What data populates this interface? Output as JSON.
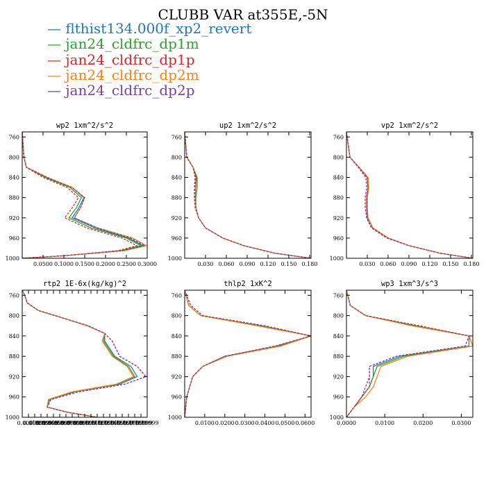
{
  "title": "CLUBB VAR at355E,-5N",
  "series": [
    {
      "name": "flthist134.000f_xp2_revert",
      "color": "#1f77b4",
      "dash": "solid"
    },
    {
      "name": "jan24_cldfrc_dp1m",
      "color": "#2ca02c",
      "dash": "solid"
    },
    {
      "name": "jan24_cldfrc_dp1p",
      "color": "#d62728",
      "dash": "dashed"
    },
    {
      "name": "jan24_cldfrc_dp2m",
      "color": "#ff7f0e",
      "dash": "solid"
    },
    {
      "name": "jan24_cldfrc_dp2p",
      "color": "#7b3f9e",
      "dash": "dashed"
    }
  ],
  "chart_data": [
    {
      "type": "line",
      "title": "wp2 1xm^2/s^2",
      "xlim": [
        0.0,
        0.3
      ],
      "xticks": [
        0.05,
        0.1,
        0.15,
        0.2,
        0.25,
        0.3
      ],
      "xticklabels": [
        "0.0500",
        "0.1000",
        "0.1500",
        "0.2000",
        "0.2500",
        "0.3000"
      ],
      "ylim": [
        750,
        1000
      ],
      "yticks": [
        760,
        800,
        840,
        880,
        920,
        960,
        1000
      ],
      "yticklabels": [
        "760",
        "800",
        "840",
        "880",
        "920",
        "960",
        "1000"
      ],
      "y": [
        750,
        800,
        820,
        840,
        860,
        880,
        900,
        920,
        940,
        960,
        975,
        985,
        995,
        1000
      ],
      "series": [
        {
          "x": [
            0.0,
            0.004,
            0.01,
            0.06,
            0.12,
            0.148,
            0.136,
            0.12,
            0.175,
            0.255,
            0.29,
            0.24,
            0.1,
            0.0
          ]
        },
        {
          "x": [
            0.0,
            0.004,
            0.01,
            0.055,
            0.115,
            0.142,
            0.13,
            0.112,
            0.165,
            0.25,
            0.285,
            0.235,
            0.1,
            0.0
          ]
        },
        {
          "x": [
            0.0,
            0.004,
            0.01,
            0.05,
            0.108,
            0.135,
            0.12,
            0.102,
            0.155,
            0.24,
            0.275,
            0.23,
            0.1,
            0.0
          ]
        },
        {
          "x": [
            0.0,
            0.004,
            0.01,
            0.06,
            0.12,
            0.15,
            0.14,
            0.125,
            0.182,
            0.265,
            0.298,
            0.245,
            0.1,
            0.0
          ]
        },
        {
          "x": [
            0.0,
            0.004,
            0.01,
            0.06,
            0.12,
            0.15,
            0.14,
            0.125,
            0.18,
            0.26,
            0.295,
            0.24,
            0.1,
            0.0
          ]
        }
      ]
    },
    {
      "type": "line",
      "title": "up2 1xm^2/s^2",
      "xlim": [
        0.0,
        0.182
      ],
      "xticks": [
        0.03,
        0.06,
        0.09,
        0.12,
        0.15,
        0.18
      ],
      "xticklabels": [
        "0.030",
        "0.060",
        "0.090",
        "0.120",
        "0.150",
        "0.180"
      ],
      "ylim": [
        750,
        1000
      ],
      "yticks": [
        760,
        800,
        840,
        880,
        920,
        960,
        1000
      ],
      "yticklabels": [
        "760",
        "800",
        "840",
        "880",
        "920",
        "960",
        "1000"
      ],
      "y": [
        750,
        800,
        820,
        840,
        860,
        880,
        900,
        920,
        940,
        960,
        975,
        990,
        1000
      ],
      "series": [
        {
          "x": [
            0.0,
            0.003,
            0.012,
            0.017,
            0.016,
            0.015,
            0.016,
            0.02,
            0.03,
            0.055,
            0.085,
            0.13,
            0.182
          ]
        },
        {
          "x": [
            0.0,
            0.003,
            0.012,
            0.018,
            0.018,
            0.016,
            0.016,
            0.02,
            0.03,
            0.055,
            0.085,
            0.13,
            0.182
          ]
        },
        {
          "x": [
            0.0,
            0.003,
            0.012,
            0.015,
            0.014,
            0.014,
            0.015,
            0.02,
            0.03,
            0.055,
            0.085,
            0.13,
            0.182
          ]
        },
        {
          "x": [
            0.0,
            0.003,
            0.012,
            0.016,
            0.016,
            0.015,
            0.016,
            0.02,
            0.03,
            0.055,
            0.085,
            0.13,
            0.182
          ]
        },
        {
          "x": [
            0.0,
            0.003,
            0.012,
            0.016,
            0.015,
            0.015,
            0.016,
            0.02,
            0.03,
            0.055,
            0.085,
            0.13,
            0.182
          ]
        }
      ]
    },
    {
      "type": "line",
      "title": "vp2 1xm^2/s^2",
      "xlim": [
        0.0,
        0.182
      ],
      "xticks": [
        0.03,
        0.06,
        0.09,
        0.12,
        0.15,
        0.18
      ],
      "xticklabels": [
        "0.030",
        "0.060",
        "0.090",
        "0.120",
        "0.150",
        "0.180"
      ],
      "ylim": [
        750,
        1000
      ],
      "yticks": [
        760,
        800,
        840,
        880,
        920,
        960,
        1000
      ],
      "yticklabels": [
        "760",
        "800",
        "840",
        "880",
        "920",
        "960",
        "1000"
      ],
      "y": [
        750,
        800,
        820,
        840,
        860,
        880,
        900,
        920,
        940,
        960,
        975,
        990,
        1000
      ],
      "series": [
        {
          "x": [
            0.0,
            0.005,
            0.018,
            0.03,
            0.031,
            0.029,
            0.029,
            0.03,
            0.038,
            0.06,
            0.09,
            0.135,
            0.182
          ]
        },
        {
          "x": [
            0.0,
            0.005,
            0.018,
            0.031,
            0.032,
            0.03,
            0.03,
            0.031,
            0.038,
            0.06,
            0.09,
            0.135,
            0.182
          ]
        },
        {
          "x": [
            0.0,
            0.005,
            0.017,
            0.028,
            0.029,
            0.027,
            0.027,
            0.029,
            0.036,
            0.058,
            0.09,
            0.135,
            0.182
          ]
        },
        {
          "x": [
            0.0,
            0.005,
            0.018,
            0.031,
            0.032,
            0.03,
            0.03,
            0.031,
            0.038,
            0.06,
            0.09,
            0.135,
            0.182
          ]
        },
        {
          "x": [
            0.0,
            0.005,
            0.018,
            0.03,
            0.031,
            0.029,
            0.029,
            0.03,
            0.037,
            0.06,
            0.09,
            0.135,
            0.182
          ]
        }
      ]
    },
    {
      "type": "line",
      "title": "rtp2 1E-6x(kg/kg)^2",
      "xlim": [
        0.0,
        1.0
      ],
      "xticks": [
        0.05,
        0.1,
        0.15,
        0.2,
        0.25,
        0.3,
        0.35,
        0.4,
        0.45,
        0.5,
        0.55,
        0.6,
        0.65,
        0.7,
        0.75,
        0.8,
        0.85,
        0.9,
        0.95,
        1.0
      ],
      "xticklabels": [
        "0.00999",
        "0.01999",
        "0.02999",
        "0.03999",
        "0.04999",
        "0.05999",
        "0.06999",
        "0.07999",
        "0.08999",
        "0.09999",
        "0.10999",
        "0.11999",
        "0.12999",
        "0.13999",
        "0.14999",
        "0.15999",
        "0.16999",
        "0.17999",
        "0.18999",
        "0.19999"
      ],
      "ylim": [
        750,
        1000
      ],
      "yticks": [
        760,
        800,
        840,
        880,
        920,
        960,
        1000
      ],
      "yticklabels": [
        "760",
        "800",
        "840",
        "880",
        "920",
        "960",
        "1000"
      ],
      "y": [
        750,
        760,
        775,
        790,
        805,
        820,
        835,
        850,
        865,
        880,
        900,
        920,
        935,
        950,
        965,
        980,
        990,
        1000
      ],
      "series": [
        {
          "x": [
            0.0,
            0.02,
            0.04,
            0.13,
            0.33,
            0.52,
            0.66,
            0.66,
            0.7,
            0.74,
            0.87,
            0.92,
            0.78,
            0.42,
            0.22,
            0.2,
            0.36,
            0.6
          ]
        },
        {
          "x": [
            0.0,
            0.02,
            0.04,
            0.13,
            0.33,
            0.52,
            0.66,
            0.65,
            0.69,
            0.73,
            0.85,
            0.9,
            0.76,
            0.4,
            0.21,
            0.2,
            0.36,
            0.6
          ]
        },
        {
          "x": [
            0.0,
            0.02,
            0.04,
            0.13,
            0.33,
            0.53,
            0.66,
            0.72,
            0.75,
            0.78,
            0.92,
            0.99,
            0.82,
            0.45,
            0.23,
            0.2,
            0.36,
            0.6
          ]
        },
        {
          "x": [
            0.0,
            0.02,
            0.04,
            0.13,
            0.33,
            0.52,
            0.66,
            0.64,
            0.68,
            0.72,
            0.84,
            0.89,
            0.75,
            0.4,
            0.21,
            0.2,
            0.36,
            0.6
          ]
        },
        {
          "x": [
            0.0,
            0.02,
            0.04,
            0.13,
            0.33,
            0.53,
            0.66,
            0.72,
            0.75,
            0.78,
            0.92,
            0.99,
            0.82,
            0.45,
            0.23,
            0.2,
            0.36,
            0.6
          ]
        }
      ]
    },
    {
      "type": "line",
      "title": "thlp2 1xK^2",
      "xlim": [
        0.0,
        0.063
      ],
      "xticks": [
        0.01,
        0.02,
        0.03,
        0.04,
        0.05,
        0.06
      ],
      "xticklabels": [
        "0.0100",
        "0.0200",
        "0.0300",
        "0.0400",
        "0.0500",
        "0.0600"
      ],
      "ylim": [
        750,
        1000
      ],
      "yticks": [
        760,
        800,
        840,
        880,
        920,
        960,
        1000
      ],
      "yticklabels": [
        "760",
        "800",
        "840",
        "880",
        "920",
        "960",
        "1000"
      ],
      "y": [
        750,
        780,
        800,
        820,
        840,
        860,
        880,
        900,
        920,
        960,
        1000
      ],
      "series": [
        {
          "x": [
            0.0,
            0.002,
            0.008,
            0.038,
            0.063,
            0.046,
            0.02,
            0.009,
            0.004,
            0.001,
            0.0
          ]
        },
        {
          "x": [
            0.0,
            0.002,
            0.008,
            0.037,
            0.063,
            0.047,
            0.021,
            0.009,
            0.004,
            0.001,
            0.0
          ]
        },
        {
          "x": [
            0.0,
            0.003,
            0.009,
            0.04,
            0.063,
            0.045,
            0.02,
            0.009,
            0.004,
            0.001,
            0.0
          ]
        },
        {
          "x": [
            0.0,
            0.002,
            0.008,
            0.036,
            0.063,
            0.048,
            0.021,
            0.009,
            0.004,
            0.001,
            0.0
          ]
        },
        {
          "x": [
            0.0,
            0.003,
            0.009,
            0.04,
            0.063,
            0.045,
            0.02,
            0.009,
            0.004,
            0.001,
            0.0
          ]
        }
      ]
    },
    {
      "type": "line",
      "title": "wp3 1xm^3/s^3",
      "xlim": [
        0.0,
        0.033
      ],
      "xticks": [
        0.0,
        0.01,
        0.02,
        0.03
      ],
      "xticklabels": [
        "0.0000",
        "0.0100",
        "0.0200",
        "0.0300"
      ],
      "ylim": [
        750,
        1000
      ],
      "yticks": [
        760,
        800,
        840,
        880,
        920,
        960,
        1000
      ],
      "yticklabels": [
        "760",
        "800",
        "840",
        "880",
        "920",
        "960",
        "1000"
      ],
      "y": [
        750,
        780,
        800,
        820,
        840,
        860,
        880,
        900,
        920,
        940,
        960,
        980,
        1000
      ],
      "series": [
        {
          "x": [
            0.0,
            0.001,
            0.005,
            0.018,
            0.032,
            0.032,
            0.014,
            0.007,
            0.007,
            0.006,
            0.004,
            0.002,
            0.0
          ]
        },
        {
          "x": [
            0.0,
            0.001,
            0.005,
            0.018,
            0.032,
            0.033,
            0.015,
            0.008,
            0.007,
            0.006,
            0.004,
            0.002,
            0.0
          ]
        },
        {
          "x": [
            0.0,
            0.001,
            0.005,
            0.019,
            0.032,
            0.031,
            0.013,
            0.006,
            0.006,
            0.005,
            0.004,
            0.002,
            0.0
          ]
        },
        {
          "x": [
            0.0,
            0.001,
            0.005,
            0.017,
            0.032,
            0.033,
            0.016,
            0.009,
            0.008,
            0.007,
            0.005,
            0.002,
            0.0
          ]
        },
        {
          "x": [
            0.0,
            0.001,
            0.005,
            0.019,
            0.032,
            0.031,
            0.013,
            0.006,
            0.006,
            0.006,
            0.004,
            0.002,
            0.0
          ]
        }
      ]
    }
  ]
}
